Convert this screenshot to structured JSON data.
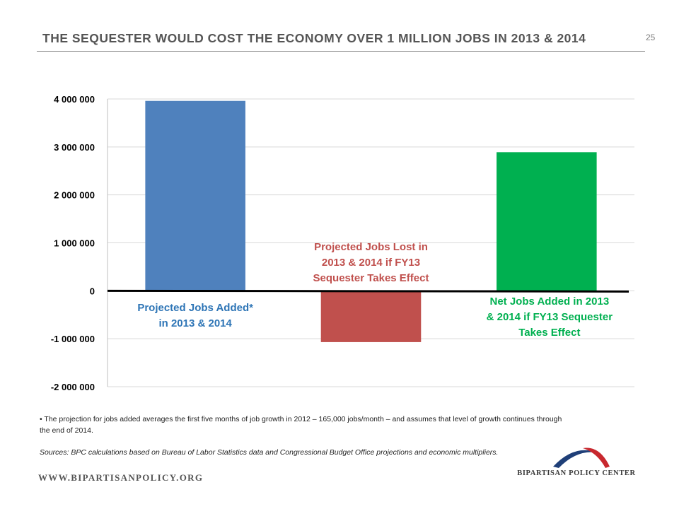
{
  "header": {
    "title": "THE SEQUESTER WOULD COST THE ECONOMY OVER 1 MILLION JOBS IN 2013 & 2014",
    "page_number": "25"
  },
  "chart_data": {
    "type": "bar",
    "categories": [
      "Projected Jobs Added* in 2013 & 2014",
      "Projected Jobs Lost in 2013 & 2014 if FY13 Sequester Takes Effect",
      "Net Jobs Added in 2013 & 2014 if FY13 Sequester Takes Effect"
    ],
    "values": [
      3960000,
      -1070000,
      2890000
    ],
    "colors": [
      "#4f81bd",
      "#c0504d",
      "#00b050"
    ],
    "label_colors": [
      "#2e75b6",
      "#c0504d",
      "#00b050"
    ],
    "category_label_lines": [
      [
        "Projected Jobs Added*",
        "in 2013 & 2014"
      ],
      [
        "Projected Jobs Lost in",
        "2013 & 2014 if FY13",
        "Sequester Takes Effect"
      ],
      [
        "Net Jobs Added in 2013",
        "& 2014 if FY13 Sequester",
        "Takes Effect"
      ]
    ],
    "yticks": [
      4000000,
      3000000,
      2000000,
      1000000,
      0,
      -1000000,
      -2000000
    ],
    "ytick_labels": [
      "4 000 000",
      "3 000 000",
      "2 000 000",
      "1 000 000",
      "0",
      "-1 000 000",
      "-2 000 000"
    ],
    "ylim": [
      -2000000,
      4000000
    ],
    "grid": true,
    "title": "",
    "xlabel": "",
    "ylabel": ""
  },
  "notes": {
    "footnote": "The projection for jobs added averages the first five months of job growth in 2012 – 165,000 jobs/month – and assumes that level of growth continues through the end of 2014.",
    "sources": "Sources: BPC calculations based on Bureau of Labor Statistics data and Congressional Budget Office projections and economic multipliers."
  },
  "footer": {
    "website": "WWW.BIPARTISANPOLICY.ORG",
    "logo_text": "BIPARTISAN POLICY CENTER",
    "logo_colors": [
      "#1f3f78",
      "#c8282e"
    ]
  }
}
